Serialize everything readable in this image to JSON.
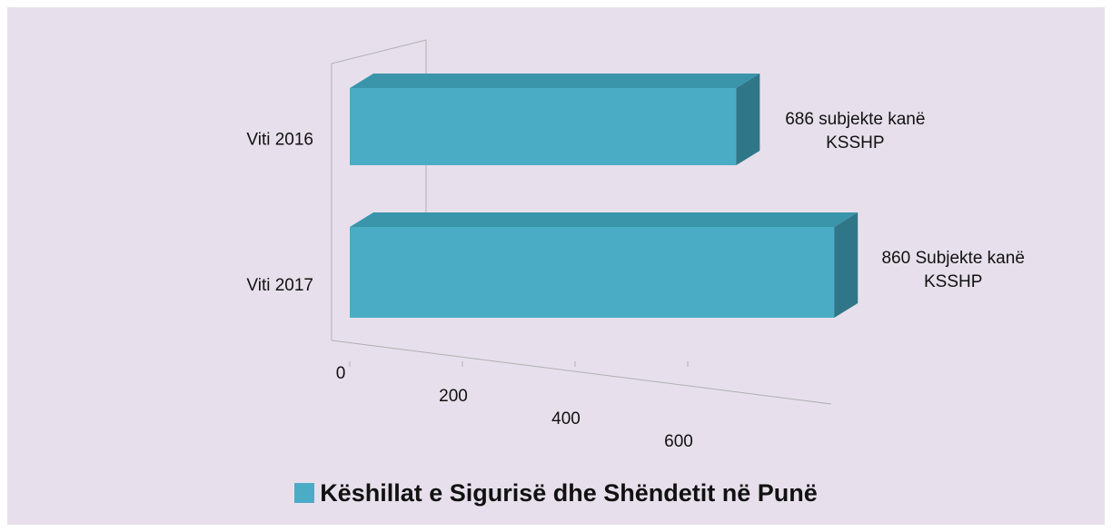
{
  "chart_data": {
    "type": "bar",
    "orientation": "horizontal",
    "categories": [
      "Viti 2016",
      "Viti 2017"
    ],
    "series": [
      {
        "name": "Këshillat e Sigurisë dhe Shëndetit në Punë",
        "color": "#4bacc6",
        "values": [
          686,
          860
        ],
        "value_labels": [
          "686 subjekte kanë KSSHP",
          "860  Subjekte kanë KSSHP"
        ]
      }
    ],
    "xlim": [
      0,
      1000
    ],
    "xticks": [
      0,
      200,
      400,
      600
    ],
    "legend": "bottom"
  }
}
